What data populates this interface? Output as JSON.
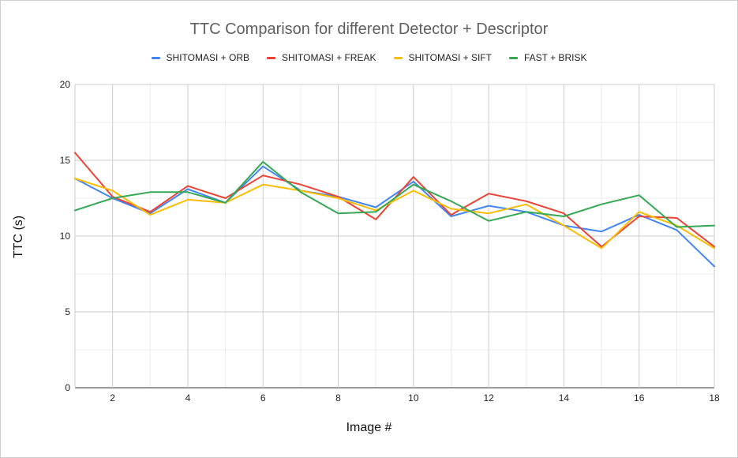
{
  "chart_data": {
    "type": "line",
    "title": "TTC Comparison for different Detector + Descriptor",
    "xlabel": "Image #",
    "ylabel": "TTC (s)",
    "xlim": [
      1,
      18
    ],
    "ylim": [
      0,
      20
    ],
    "x_ticks": [
      2,
      4,
      6,
      8,
      10,
      12,
      14,
      16,
      18
    ],
    "y_ticks": [
      0,
      5,
      10,
      15,
      20
    ],
    "grid": true,
    "legend_position": "top",
    "x": [
      1,
      2,
      3,
      4,
      5,
      6,
      7,
      8,
      9,
      10,
      11,
      12,
      13,
      14,
      15,
      16,
      17,
      18
    ],
    "series": [
      {
        "name": "SHITOMASI + ORB",
        "color": "#4285f4",
        "values": [
          13.8,
          12.5,
          11.5,
          13.1,
          12.2,
          14.6,
          13.0,
          12.6,
          11.9,
          13.6,
          11.3,
          12.0,
          11.6,
          10.7,
          10.3,
          11.4,
          10.4,
          8.0
        ]
      },
      {
        "name": "SHITOMASI + FREAK",
        "color": "#ea4335",
        "values": [
          15.5,
          12.6,
          11.6,
          13.3,
          12.5,
          14.0,
          13.4,
          12.6,
          11.1,
          13.9,
          11.4,
          12.8,
          12.3,
          11.5,
          9.3,
          11.3,
          11.2,
          9.3
        ]
      },
      {
        "name": "SHITOMASI + SIFT",
        "color": "#fbbc04",
        "values": [
          13.8,
          13.0,
          11.4,
          12.4,
          12.2,
          13.4,
          13.0,
          12.5,
          11.7,
          13.0,
          11.8,
          11.5,
          12.1,
          10.7,
          9.2,
          11.6,
          10.7,
          9.2
        ]
      },
      {
        "name": "FAST + BRISK",
        "color": "#34a853",
        "values": [
          11.7,
          12.5,
          12.9,
          12.9,
          12.2,
          14.9,
          12.9,
          11.5,
          11.6,
          13.4,
          12.3,
          11.0,
          11.6,
          11.3,
          12.1,
          12.7,
          10.6,
          10.7
        ]
      }
    ]
  }
}
